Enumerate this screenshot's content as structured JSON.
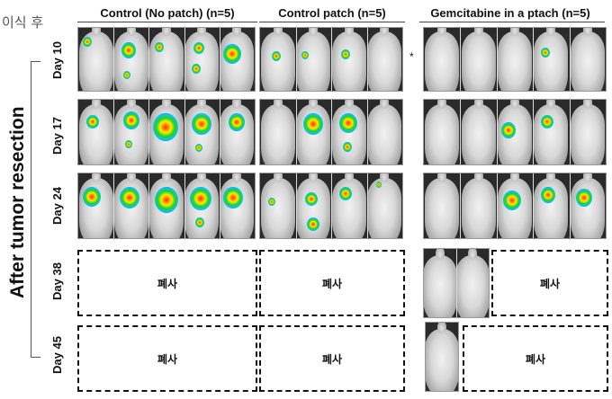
{
  "top_note": "이식 후",
  "columns": [
    {
      "label": "Control (No patch) (n=5)"
    },
    {
      "label": "Control patch (n=5)"
    },
    {
      "label": "Gemcitabine in a ptach (n=5)"
    }
  ],
  "vertical_title": "After tumor resection",
  "rows": [
    {
      "label": "Day 10"
    },
    {
      "label": "Day 17"
    },
    {
      "label": "Day 24"
    },
    {
      "label": "Day 38"
    },
    {
      "label": "Day 45"
    }
  ],
  "asterisk": "*",
  "dead_label": "폐사",
  "colors": {
    "signal_high": "#ff2a00",
    "signal_mid": "#1fd21f",
    "signal_low": "#1f3cff",
    "background": "#ffffff"
  }
}
